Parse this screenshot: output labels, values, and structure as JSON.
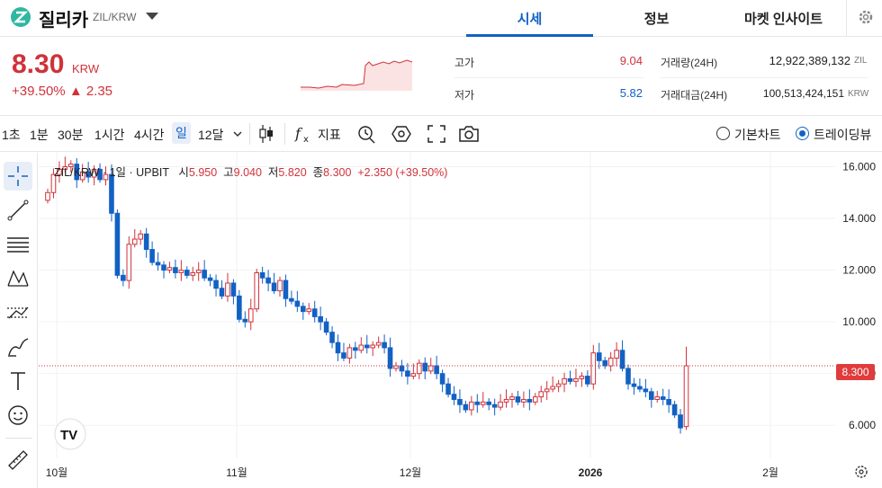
{
  "header": {
    "coin_name": "질리카",
    "pair": "ZIL/KRW",
    "tabs": [
      {
        "label": "시세",
        "active": true
      },
      {
        "label": "정보",
        "active": false
      },
      {
        "label": "마켓 인사이트",
        "active": false
      }
    ]
  },
  "ticker": {
    "price": "8.30",
    "unit": "KRW",
    "change_pct": "+39.50%",
    "change_abs": "▲ 2.35",
    "high_label": "고가",
    "high_value": "9.04",
    "low_label": "저가",
    "low_value": "5.82",
    "volume_label": "거래량(24H)",
    "volume_value": "12,922,389,132",
    "volume_unit": "ZIL",
    "amount_label": "거래대금(24H)",
    "amount_value": "100,513,424,151",
    "amount_unit": "KRW"
  },
  "toolbar": {
    "intervals": [
      "1초",
      "1분",
      "30분",
      "1시간",
      "4시간",
      "일",
      "12달"
    ],
    "active_interval": "일",
    "indicator_label": "지표",
    "chart_mode_basic": "기본차트",
    "chart_mode_tv": "트레이딩뷰",
    "selected_mode": "트레이딩뷰"
  },
  "legend": {
    "symbol": "ZIL/KRW · 1일 · UPBIT",
    "open_label": "시",
    "open": "5.950",
    "high_label": "고",
    "high": "9.040",
    "low_label": "저",
    "low": "5.820",
    "close_label": "종",
    "close": "8.300",
    "change": "+2.350 (+39.50%)"
  },
  "colors": {
    "up": "#d0323a",
    "down": "#1261c4",
    "accent": "#1261c4"
  },
  "chart_data": {
    "type": "candlestick",
    "y_ticks": [
      "16.000",
      "14.000",
      "12.000",
      "10.000",
      "8.000",
      "6.000"
    ],
    "ylim": [
      5.0,
      16.4
    ],
    "x_ticks": [
      "10월",
      "11월",
      "12월",
      "2026",
      "2월"
    ],
    "current_price_label": "8.300",
    "closes": [
      15.0,
      15.7,
      15.9,
      16.0,
      16.1,
      15.5,
      15.8,
      15.6,
      15.9,
      15.5,
      15.7,
      14.2,
      11.8,
      11.6,
      13.0,
      13.2,
      13.4,
      12.8,
      12.3,
      12.2,
      12.0,
      12.1,
      11.9,
      12.0,
      11.8,
      11.9,
      12.0,
      11.7,
      11.6,
      11.3,
      11.0,
      11.5,
      11.0,
      10.1,
      10.0,
      10.5,
      11.9,
      11.7,
      11.5,
      11.2,
      11.6,
      10.9,
      10.8,
      10.6,
      10.4,
      10.5,
      10.2,
      10.0,
      9.6,
      9.2,
      8.8,
      8.6,
      9.0,
      8.9,
      9.1,
      9.0,
      9.1,
      9.2,
      9.0,
      8.2,
      8.3,
      8.1,
      7.9,
      8.0,
      8.4,
      8.1,
      8.3,
      8.0,
      7.6,
      7.2,
      7.0,
      6.8,
      6.6,
      6.9,
      6.8,
      6.9,
      6.8,
      6.7,
      6.9,
      7.0,
      7.1,
      6.9,
      7.0,
      6.9,
      7.1,
      7.3,
      7.4,
      7.5,
      7.6,
      7.8,
      7.7,
      7.8,
      7.9,
      7.6,
      8.8,
      8.5,
      8.3,
      8.6,
      8.9,
      8.2,
      7.6,
      7.5,
      7.4,
      7.3,
      7.0,
      7.1,
      7.0,
      6.8,
      6.4,
      5.9,
      8.3
    ]
  }
}
